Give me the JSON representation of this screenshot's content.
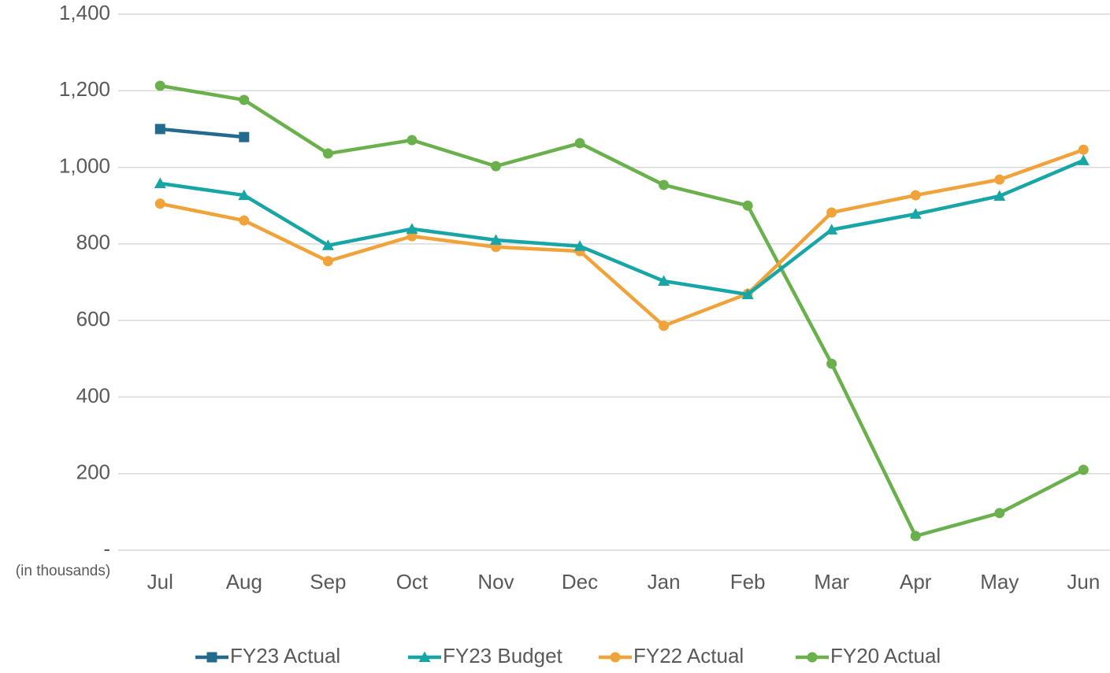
{
  "chart_data": {
    "type": "line",
    "annotation": "(in thousands)",
    "categories": [
      "Jul",
      "Aug",
      "Sep",
      "Oct",
      "Nov",
      "Dec",
      "Jan",
      "Feb",
      "Mar",
      "Apr",
      "May",
      "Jun"
    ],
    "series": [
      {
        "name": "FY23 Actual",
        "color": "#236b8e",
        "marker": "square",
        "values": [
          1100,
          1079,
          null,
          null,
          null,
          null,
          null,
          null,
          null,
          null,
          null,
          null
        ]
      },
      {
        "name": "FY23 Budget",
        "color": "#17a5a5",
        "marker": "triangle",
        "values": [
          958,
          927,
          796,
          839,
          810,
          794,
          703,
          668,
          837,
          878,
          925,
          1018
        ]
      },
      {
        "name": "FY22 Actual",
        "color": "#f0a33a",
        "marker": "circle",
        "values": [
          905,
          861,
          755,
          820,
          792,
          781,
          586,
          670,
          882,
          927,
          968,
          1046
        ]
      },
      {
        "name": "FY20 Actual",
        "color": "#6ab04c",
        "marker": "circle",
        "values": [
          1213,
          1176,
          1036,
          1071,
          1003,
          1063,
          954,
          900,
          487,
          37,
          97,
          210
        ]
      }
    ],
    "ylim": [
      0,
      1400
    ],
    "yticks": [
      {
        "value": 0,
        "label": "-"
      },
      200,
      400,
      600,
      800,
      {
        "value": 1000,
        "label": "1,000"
      },
      {
        "value": 1200,
        "label": "1,200"
      },
      {
        "value": 1400,
        "label": "1,400"
      }
    ],
    "grid": true
  }
}
